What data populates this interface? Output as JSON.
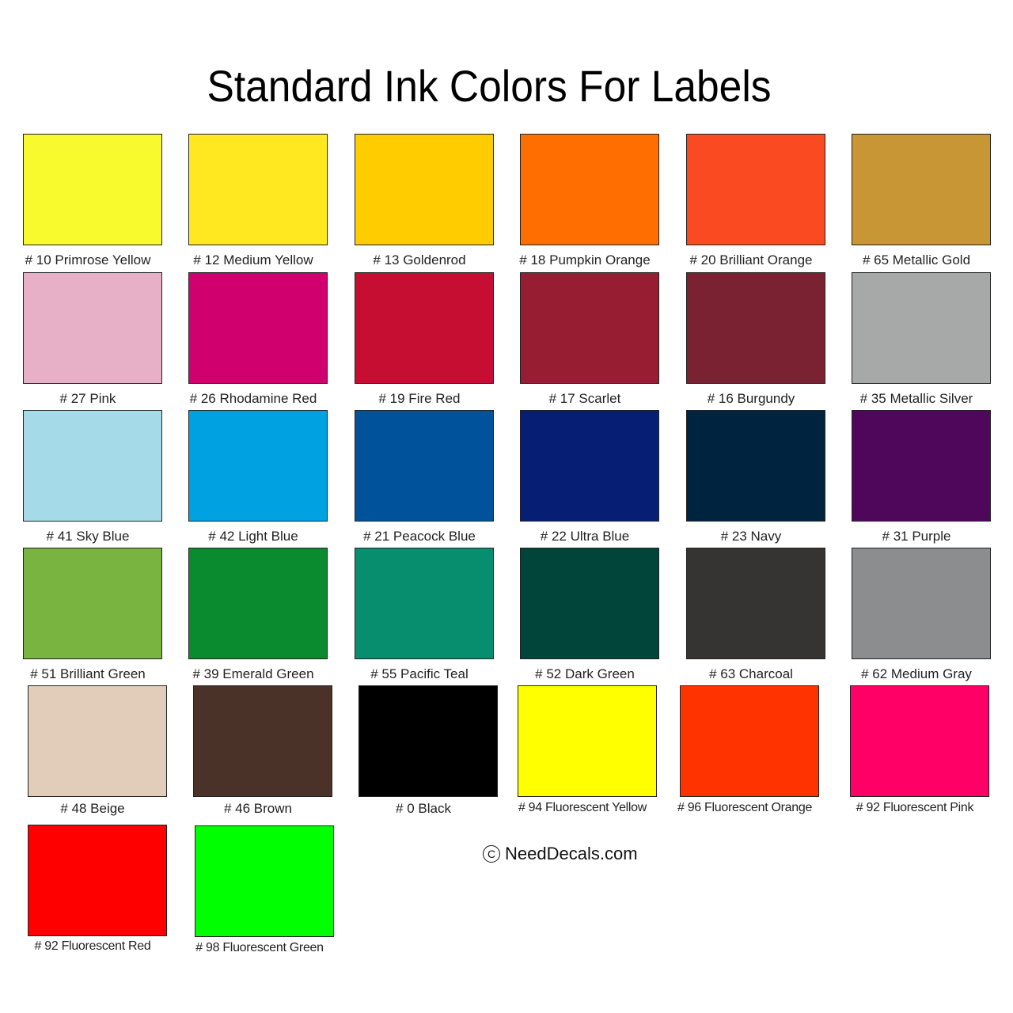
{
  "title": "Standard Ink Colors For Labels",
  "colors": [
    {
      "label": "# 10 Primrose Yellow",
      "hex": "#F8FA2E"
    },
    {
      "label": "# 12 Medium Yellow",
      "hex": "#FFE81F"
    },
    {
      "label": "# 13 Goldenrod",
      "hex": "#FFCC00"
    },
    {
      "label": "# 18 Pumpkin Orange",
      "hex": "#FF6E00"
    },
    {
      "label": "# 20 Brilliant Orange",
      "hex": "#FA4A22"
    },
    {
      "label": "# 65 Metallic Gold",
      "hex": "#C89634"
    },
    {
      "label": "# 27 Pink",
      "hex": "#E7B0C7"
    },
    {
      "label": "# 26 Rhodamine Red",
      "hex": "#D0006F"
    },
    {
      "label": "# 19 Fire Red",
      "hex": "#C60D32"
    },
    {
      "label": "# 17 Scarlet",
      "hex": "#961D32"
    },
    {
      "label": "# 16 Burgundy",
      "hex": "#7B2232"
    },
    {
      "label": "# 35 Metallic Silver",
      "hex": "#A7A8A8"
    },
    {
      "label": "# 41 Sky Blue",
      "hex": "#A5DBE8"
    },
    {
      "label": "# 42 Light Blue",
      "hex": "#00A1E0"
    },
    {
      "label": "# 21 Peacock Blue",
      "hex": "#00539A"
    },
    {
      "label": "# 22 Ultra Blue",
      "hex": "#061F74"
    },
    {
      "label": "# 23 Navy",
      "hex": "#00233F"
    },
    {
      "label": "# 31 Purple",
      "hex": "#4F075C"
    },
    {
      "label": "# 51 Brilliant Green",
      "hex": "#78B43F"
    },
    {
      "label": "# 39 Emerald Green",
      "hex": "#0A8B30"
    },
    {
      "label": "# 55 Pacific Teal",
      "hex": "#068E6E"
    },
    {
      "label": "# 52 Dark Green",
      "hex": "#00443A"
    },
    {
      "label": "# 63 Charcoal",
      "hex": "#363432"
    },
    {
      "label": "# 62 Medium Gray",
      "hex": "#8C8D8F"
    },
    {
      "label": "# 48 Beige",
      "hex": "#E1CDB9"
    },
    {
      "label": "# 46 Brown",
      "hex": "#4B3229"
    },
    {
      "label": "# 0 Black",
      "hex": "#000000"
    },
    {
      "label": "# 94 Fluorescent Yellow",
      "hex": "#FFFF00"
    },
    {
      "label": "# 96 Fluorescent Orange",
      "hex": "#FF3300"
    },
    {
      "label": "# 92 Fluorescent Pink",
      "hex": "#FF0066"
    },
    {
      "label": "# 92 Fluorescent Red",
      "hex": "#FF0000"
    },
    {
      "label": "# 98 Fluorescent Green",
      "hex": "#00FF00"
    }
  ],
  "copyright": {
    "icon": "copyright-icon",
    "symbol": "C",
    "text": "NeedDecals.com"
  }
}
